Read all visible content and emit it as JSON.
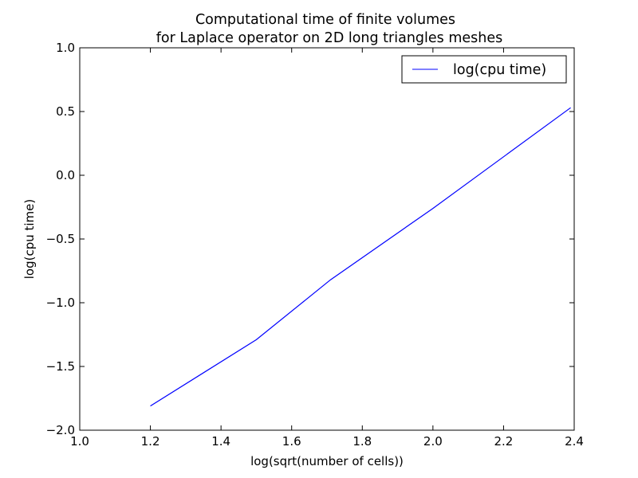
{
  "chart_data": {
    "type": "line",
    "title": [
      "Computational time of finite volumes",
      "for Laplace operator on 2D long triangles meshes"
    ],
    "xlabel": "log(sqrt(number of cells))",
    "ylabel": "log(cpu time)",
    "xlim": [
      1.0,
      2.4
    ],
    "ylim": [
      -2.0,
      1.0
    ],
    "xticks": [
      "1.0",
      "1.2",
      "1.4",
      "1.6",
      "1.8",
      "2.0",
      "2.2",
      "2.4"
    ],
    "yticks": [
      "−2.0",
      "−1.5",
      "−1.0",
      "−0.5",
      "0.0",
      "0.5",
      "1.0"
    ],
    "grid": false,
    "legend_position": "top-right",
    "series": [
      {
        "name": "log(cpu time)",
        "color": "#0000ff",
        "x": [
          1.2,
          1.5,
          1.71,
          2.0,
          2.39
        ],
        "y": [
          -1.81,
          -1.29,
          -0.82,
          -0.26,
          0.53
        ]
      }
    ]
  }
}
